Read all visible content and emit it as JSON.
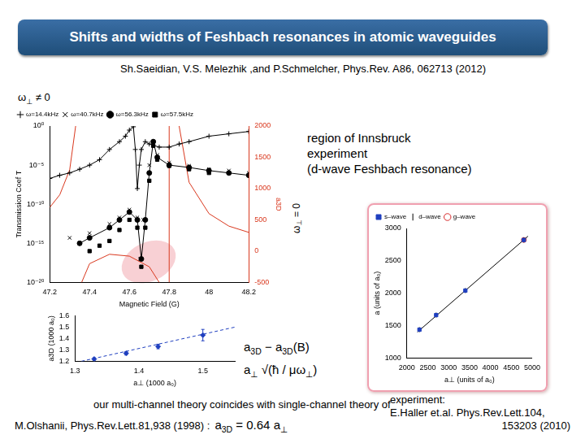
{
  "header": "Shifts and widths of Feshbach resonances in atomic waveguides",
  "citation": "Sh.Saeidian, V.S. Melezhik ,and P.Schmelcher, Phys.Rev. A86, 062713 (2012)",
  "region_note": [
    "region of Innsbruck",
    "experiment",
    "(d-wave Feshbach resonance)"
  ],
  "formulas": [
    [
      {
        "t": "a"
      },
      {
        "sub": "3D"
      },
      {
        "t": " − a"
      },
      {
        "sub": "3D"
      },
      {
        "t": "(B)"
      }
    ],
    [
      {
        "t": "a"
      },
      {
        "sub": "⊥"
      },
      {
        "t": "  √(ħ / μω"
      },
      {
        "sub": "⊥"
      },
      {
        "t": ")"
      }
    ]
  ],
  "olshanii": {
    "lines": [
      "our multi-channel theory coincides with single-channel theory of",
      "M.Olshanii, Phys.Rev.Lett.81,938 (1998) :"
    ],
    "formula": [
      {
        "t": "a"
      },
      {
        "sub": "3D"
      },
      {
        "t": " = 0.64 a"
      },
      {
        "sub": "⊥"
      }
    ]
  },
  "experiment": [
    "experiment:",
    "E.Haller et.al. Phys.Rev.Lett.104,",
    "153203 (2010)"
  ],
  "chart_data": [
    {
      "type": "line",
      "xlabel": "Magnetic Field (G)",
      "ylabel": "Transmission Coef T",
      "y2label": "a3D",
      "log": "y",
      "grid": false,
      "legend": "upper left",
      "xlim": [
        47.2,
        48.2
      ],
      "xticks": [
        47.2,
        47.4,
        47.6,
        47.8,
        48,
        48.2
      ],
      "ylim": [
        1e-20,
        1
      ],
      "yticks": [
        {
          "value": 1e-20,
          "label": "10⁻²⁰"
        },
        {
          "value": 1e-15,
          "label": "10⁻¹⁵"
        },
        {
          "value": 1e-10,
          "label": "10⁻¹⁰"
        },
        {
          "value": 1e-05,
          "label": "10⁻⁵"
        },
        {
          "value": 1,
          "label": "10⁰"
        }
      ],
      "y2lim": [
        -500,
        2000
      ],
      "y2ticks": [
        -500,
        0,
        500,
        1000,
        1500,
        2000
      ],
      "annotations": [
        [
          {
            "t": "ω"
          },
          {
            "sub": "⊥"
          },
          {
            "t": " ≠ 0"
          }
        ],
        [
          {
            "t": "ω"
          },
          {
            "sub": "⊥"
          },
          {
            "t": " = 0"
          }
        ]
      ],
      "series": [
        {
          "name": "ω=14.4kHz",
          "color": "#000000",
          "marker": "plus",
          "line_style": "solid",
          "x": [
            47.2,
            47.25,
            47.3,
            47.35,
            47.4,
            47.45,
            47.5,
            47.55,
            47.58,
            47.6,
            47.62,
            47.63,
            47.64,
            47.65,
            47.66,
            47.68,
            47.7,
            47.75,
            47.8,
            47.85,
            47.9,
            48.0,
            48.1,
            48.2
          ],
          "values": [
            2e-07,
            5e-07,
            1e-06,
            3e-06,
            1e-05,
            5e-05,
            0.001,
            0.01,
            0.05,
            0.3,
            0.8,
            0.001,
            1e-08,
            1e-05,
            0.001,
            0.01,
            0.005,
            0.002,
            0.002,
            0.005,
            0.01,
            0.05,
            0.1,
            0.2
          ]
        },
        {
          "name": "ω=40.7kHz",
          "color": "#000000",
          "marker": "x",
          "line_style": "none",
          "x": [
            47.3,
            47.4,
            47.5,
            47.55,
            47.6,
            47.64,
            47.655,
            47.67,
            47.7,
            47.72,
            47.74,
            47.8,
            47.9,
            48.0,
            48.1,
            48.2
          ],
          "values": [
            5e-15,
            2e-14,
            3e-13,
            2e-12,
            2e-11,
            2e-12,
            1e-17,
            1e-12,
            1e-05,
            0.005,
            0.0002,
            2e-05,
            8e-06,
            3e-06,
            2e-06,
            1e-06
          ]
        },
        {
          "name": "ω=56.3kHz",
          "color": "#000000",
          "marker": "circle",
          "line_style": "solid",
          "x": [
            47.35,
            47.4,
            47.5,
            47.55,
            47.6,
            47.64,
            47.66,
            47.68,
            47.7,
            47.72,
            47.74,
            47.8,
            47.9,
            48.0,
            48.1,
            48.2
          ],
          "values": [
            1e-15,
            5e-15,
            1e-13,
            1e-12,
            1e-11,
            1e-12,
            1e-17,
            1e-12,
            1e-06,
            0.01,
            0.0001,
            1e-05,
            5e-06,
            2e-06,
            1e-06,
            5e-07
          ]
        },
        {
          "name": "ω=57.5kHz",
          "color": "#000000",
          "marker": "square",
          "line_style": "none",
          "x": [
            47.4,
            47.45,
            47.5,
            47.55,
            47.6,
            47.64,
            47.66,
            47.68,
            47.7,
            47.72,
            47.74,
            47.8,
            47.9,
            48.0
          ],
          "values": [
            1e-16,
            5e-16,
            2e-15,
            5e-14,
            1e-12,
            1e-13,
            1e-18,
            1e-13,
            1e-07,
            0.003,
            5e-05,
            8e-06,
            3e-06,
            1e-06
          ]
        },
        {
          "color": "#d9381e",
          "marker": "none",
          "line_style": "solid",
          "axis": "y2",
          "x": [
            47.2,
            47.25,
            47.3,
            47.33,
            47.34,
            47.36,
            47.4,
            47.5,
            47.6,
            47.7,
            47.75,
            47.8,
            47.85,
            47.9,
            48.0,
            48.1,
            48.2
          ],
          "values": [
            700,
            900,
            1300,
            2000,
            null,
            -500,
            -200,
            -50,
            -80,
            -250,
            -500,
            null,
            2000,
            1100,
            600,
            400,
            300
          ]
        },
        {
          "color": "#d9381e",
          "marker": "none",
          "line_style": "solid",
          "axis": "y2",
          "x": [
            47.8,
            47.8
          ],
          "values": [
            -500,
            2000
          ]
        }
      ]
    },
    {
      "type": "scatter",
      "xlabel": "a⊥ (1000 a₀)",
      "ylabel": "a3D (1000 a₀)",
      "grid": false,
      "xlim": [
        1.3,
        1.55
      ],
      "xticks": [
        1.3,
        1.4,
        1.5
      ],
      "ylim": [
        1.2,
        1.6
      ],
      "yticks": [
        1.2,
        1.3,
        1.4,
        1.5,
        1.6
      ],
      "series": [
        {
          "color": "#1f3fbf",
          "marker": "diamond",
          "line_style": "none",
          "x": [
            1.33,
            1.38,
            1.43,
            1.5
          ],
          "values": [
            1.22,
            1.27,
            1.33,
            1.43
          ],
          "errors": [
            0.01,
            0.015,
            0.02,
            0.05
          ]
        },
        {
          "color": "#1f3fbf",
          "marker": "none",
          "line_style": "dashed",
          "x": [
            1.31,
            1.55
          ],
          "values": [
            1.2,
            1.5
          ]
        }
      ]
    },
    {
      "type": "scatter",
      "xlabel": "a⊥ (units of a₀)",
      "ylabel": "a (units of a₀)",
      "grid": false,
      "legend": "upper left",
      "xlim": [
        2000,
        5000
      ],
      "xticks": [
        2000,
        2500,
        3000,
        3500,
        4000,
        4500,
        5000
      ],
      "ylim": [
        1000,
        3000
      ],
      "yticks": [
        1000,
        1500,
        2000,
        2500,
        3000
      ],
      "series": [
        {
          "name": "s–wave",
          "color": "#1f3fbf",
          "marker": "square",
          "line_style": "none",
          "x": [
            2300,
            2700,
            3400,
            4800
          ],
          "values": [
            1438,
            1663,
            2041,
            2822
          ]
        },
        {
          "name": "d–wave",
          "color": "#000000",
          "marker": "vline",
          "line_style": "none",
          "x": [
            2300,
            2700,
            3400,
            4800
          ],
          "values": [
            1438,
            1663,
            2041,
            2822
          ]
        },
        {
          "name": "g–wave",
          "color": "#d62728",
          "marker": "open_circle",
          "line_style": "none",
          "x": [
            4800
          ],
          "values": [
            2822
          ]
        },
        {
          "color": "#000000",
          "marker": "none",
          "line_style": "solid",
          "x": [
            2250,
            4900
          ],
          "values": [
            1400,
            2880
          ]
        }
      ]
    }
  ]
}
